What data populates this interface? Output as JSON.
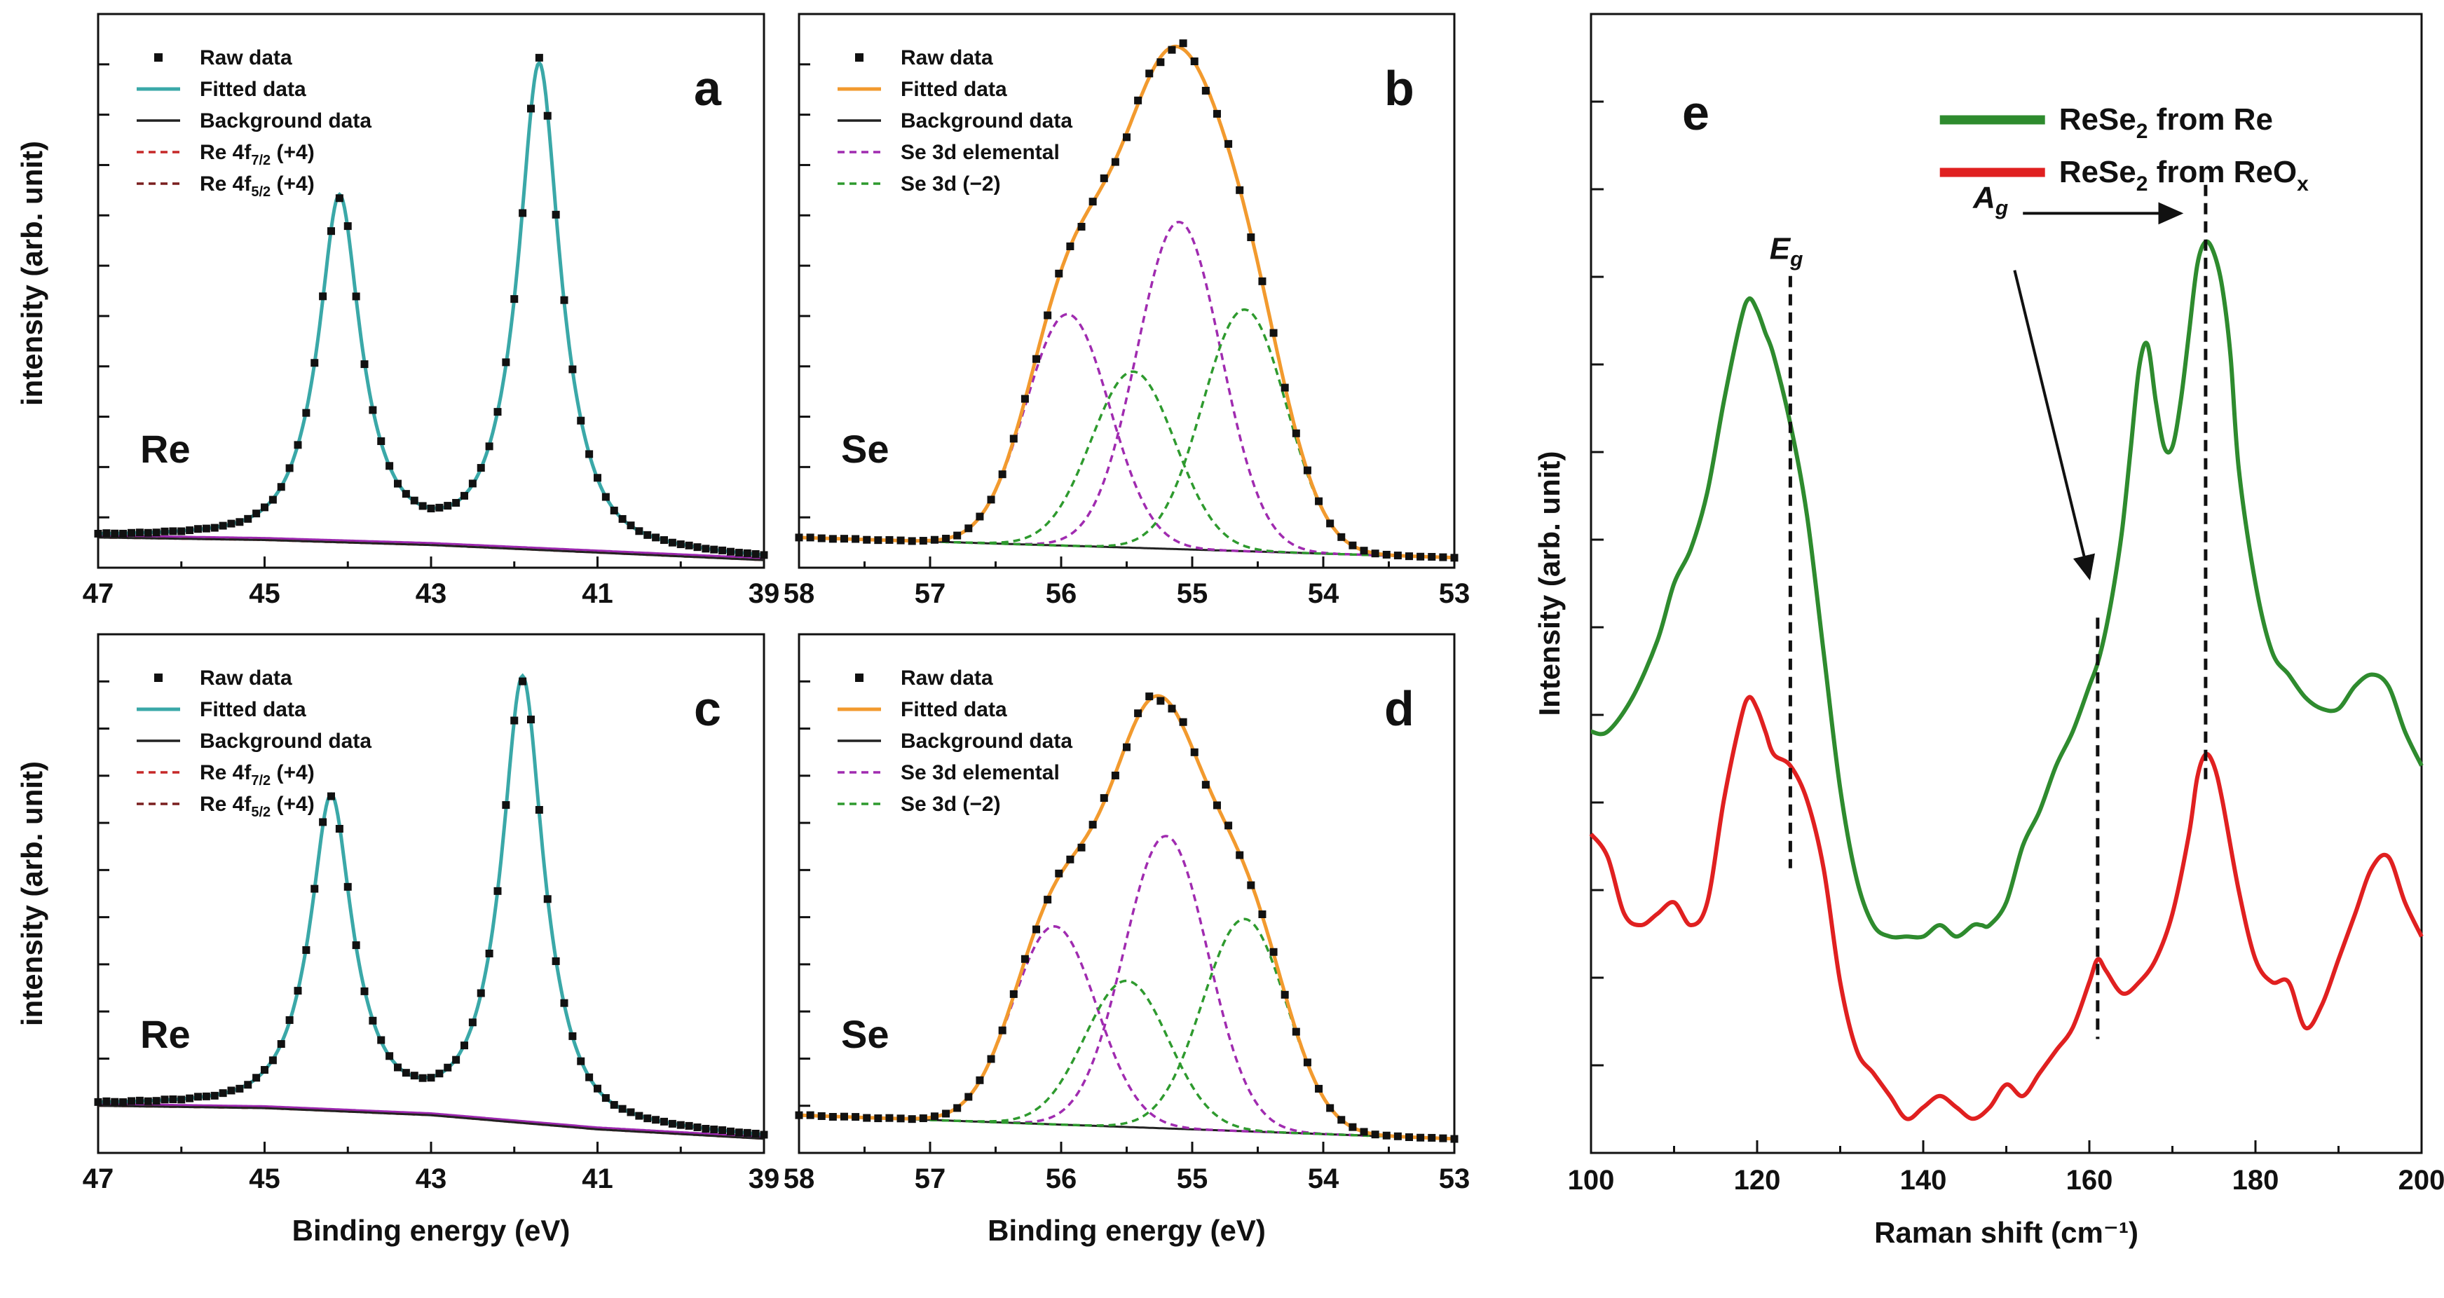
{
  "figure": {
    "ylabel_xps": "intensity (arb. unit)",
    "xlabel_xps": "Binding energy (eV)"
  },
  "chart_data": [
    {
      "id": "a",
      "type": "line",
      "panel_label": "a",
      "element": "Re",
      "xlim": [
        47,
        39
      ],
      "xticks": [
        47,
        45,
        43,
        41,
        39
      ],
      "ylabel": "intensity (arb. unit)",
      "xlabel": "",
      "legend": [
        "Raw data",
        "Fitted data",
        "Background data",
        "Re 4f7/2 (+4)",
        "Re 4f5/2 (+4)"
      ],
      "legend_position": "top-left",
      "peaks": [
        {
          "center": 44.1,
          "height": 0.68
        },
        {
          "center": 41.7,
          "height": 0.96
        }
      ],
      "background": [
        [
          47,
          0.06
        ],
        [
          45,
          0.055
        ],
        [
          43,
          0.045
        ],
        [
          41,
          0.03
        ],
        [
          39,
          0.015
        ]
      ],
      "ylim": [
        0,
        1.1
      ]
    },
    {
      "id": "b",
      "type": "line",
      "panel_label": "b",
      "element": "Se",
      "xlim": [
        58,
        53
      ],
      "xticks": [
        58,
        57,
        56,
        55,
        54,
        53
      ],
      "ylabel": "",
      "xlabel": "",
      "legend": [
        "Raw data",
        "Fitted data",
        "Background data",
        "Se 3d elemental",
        "Se 3d (−2)"
      ],
      "legend_position": "top-left",
      "components": [
        {
          "name": "Se 3d elemental",
          "center": 55.95,
          "height": 0.46
        },
        {
          "name": "Se 3d elemental",
          "center": 55.1,
          "height": 0.65
        },
        {
          "name": "Se 3d (−2)",
          "center": 55.45,
          "height": 0.35
        },
        {
          "name": "Se 3d (−2)",
          "center": 54.6,
          "height": 0.48
        }
      ],
      "background": [
        [
          58,
          0.06
        ],
        [
          53,
          0.02
        ]
      ],
      "ylim": [
        0,
        1.1
      ]
    },
    {
      "id": "c",
      "type": "line",
      "panel_label": "c",
      "element": "Re",
      "xlim": [
        47,
        39
      ],
      "xticks": [
        47,
        45,
        43,
        41,
        39
      ],
      "ylabel": "intensity (arb. unit)",
      "xlabel": "Binding energy (eV)",
      "legend": [
        "Raw data",
        "Fitted data",
        "Background data",
        "Re 4f7/2 (+4)",
        "Re 4f5/2 (+4)"
      ],
      "legend_position": "top-left",
      "peaks": [
        {
          "center": 44.2,
          "height": 0.66
        },
        {
          "center": 41.9,
          "height": 0.94
        }
      ],
      "background": [
        [
          47,
          0.1
        ],
        [
          45,
          0.095
        ],
        [
          43,
          0.08
        ],
        [
          41,
          0.05
        ],
        [
          39,
          0.03
        ]
      ],
      "ylim": [
        0,
        1.1
      ]
    },
    {
      "id": "d",
      "type": "line",
      "panel_label": "d",
      "element": "Se",
      "xlim": [
        58,
        53
      ],
      "xticks": [
        58,
        57,
        56,
        55,
        54,
        53
      ],
      "ylabel": "",
      "xlabel": "Binding energy (eV)",
      "legend": [
        "Raw data",
        "Fitted data",
        "Background data",
        "Se 3d elemental",
        "Se 3d (−2)"
      ],
      "legend_position": "top-left",
      "components": [
        {
          "name": "Se 3d elemental",
          "center": 56.05,
          "height": 0.42
        },
        {
          "name": "Se 3d elemental",
          "center": 55.2,
          "height": 0.62
        },
        {
          "name": "Se 3d (−2)",
          "center": 55.5,
          "height": 0.31
        },
        {
          "name": "Se 3d (−2)",
          "center": 54.6,
          "height": 0.45
        }
      ],
      "background": [
        [
          58,
          0.08
        ],
        [
          53,
          0.03
        ]
      ],
      "ylim": [
        0,
        1.1
      ]
    },
    {
      "id": "e",
      "type": "line",
      "panel_label": "e",
      "xlim": [
        100,
        200
      ],
      "xticks": [
        100,
        120,
        140,
        160,
        180,
        200
      ],
      "xlabel": "Raman shift (cm⁻¹)",
      "ylabel": "Intensity (arb. unit)",
      "ylim": [
        0,
        1
      ],
      "legend_position": "top-right",
      "annotations": [
        {
          "label": "E",
          "sub": "g",
          "x": 124
        },
        {
          "label": "A",
          "sub": "g",
          "x": [
            161,
            174
          ]
        }
      ],
      "series": [
        {
          "name": "ReSe2 from Re",
          "legend_main": "ReSe",
          "legend_sub": "2",
          "legend_rest": " from Re",
          "color": "#2e8b2e",
          "x": [
            100,
            102,
            105,
            108,
            110,
            112,
            114,
            116,
            118,
            119,
            120,
            121,
            122,
            124,
            126,
            128,
            130,
            132,
            134,
            136,
            138,
            140,
            142,
            144,
            146,
            147,
            148,
            150,
            152,
            154,
            156,
            158,
            160,
            161,
            162,
            163,
            164,
            165,
            166,
            167,
            168,
            169,
            170,
            171,
            172,
            173,
            174,
            175,
            176,
            177,
            178,
            180,
            182,
            184,
            186,
            188,
            190,
            192,
            194,
            196,
            198,
            200
          ],
          "y": [
            0.37,
            0.37,
            0.4,
            0.45,
            0.5,
            0.53,
            0.58,
            0.66,
            0.73,
            0.75,
            0.74,
            0.72,
            0.7,
            0.64,
            0.56,
            0.44,
            0.32,
            0.24,
            0.2,
            0.19,
            0.19,
            0.19,
            0.2,
            0.19,
            0.2,
            0.2,
            0.2,
            0.22,
            0.27,
            0.3,
            0.34,
            0.37,
            0.41,
            0.43,
            0.46,
            0.5,
            0.55,
            0.62,
            0.69,
            0.71,
            0.66,
            0.62,
            0.62,
            0.66,
            0.72,
            0.78,
            0.8,
            0.79,
            0.76,
            0.7,
            0.6,
            0.5,
            0.44,
            0.42,
            0.4,
            0.39,
            0.39,
            0.41,
            0.42,
            0.41,
            0.37,
            0.34
          ]
        },
        {
          "name": "ReSe2 from ReOx",
          "legend_main": "ReSe",
          "legend_sub": "2",
          "legend_rest": " from ReO",
          "legend_sub2": "x",
          "color": "#e02020",
          "x": [
            100,
            102,
            104,
            106,
            108,
            110,
            112,
            114,
            116,
            118,
            119,
            120,
            121,
            122,
            124,
            126,
            128,
            130,
            132,
            134,
            136,
            138,
            140,
            142,
            144,
            146,
            148,
            150,
            152,
            154,
            156,
            158,
            160,
            161,
            162,
            164,
            166,
            168,
            170,
            172,
            173,
            174,
            175,
            176,
            178,
            180,
            182,
            184,
            186,
            188,
            190,
            192,
            194,
            196,
            198,
            200
          ],
          "y": [
            0.28,
            0.26,
            0.21,
            0.2,
            0.21,
            0.22,
            0.2,
            0.22,
            0.31,
            0.38,
            0.4,
            0.39,
            0.37,
            0.35,
            0.34,
            0.31,
            0.25,
            0.15,
            0.09,
            0.07,
            0.05,
            0.03,
            0.04,
            0.05,
            0.04,
            0.03,
            0.04,
            0.06,
            0.05,
            0.07,
            0.09,
            0.11,
            0.15,
            0.17,
            0.16,
            0.14,
            0.15,
            0.17,
            0.21,
            0.28,
            0.33,
            0.35,
            0.34,
            0.31,
            0.23,
            0.17,
            0.15,
            0.15,
            0.11,
            0.13,
            0.17,
            0.21,
            0.25,
            0.26,
            0.22,
            0.19
          ]
        }
      ]
    }
  ]
}
